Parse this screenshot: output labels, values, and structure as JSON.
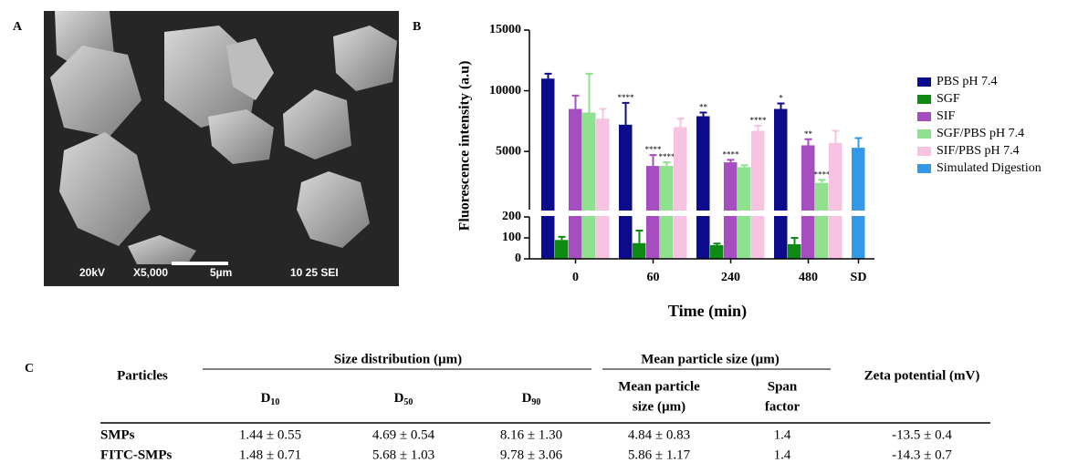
{
  "panels": {
    "a": "A",
    "b": "B",
    "c": "C"
  },
  "sem": {
    "voltage": "20kV",
    "magnification": "X5,000",
    "scale": "5µm",
    "info": "10 25 SEI"
  },
  "chart_data": {
    "type": "bar",
    "y_label": "Fluorescence intensity (a.u)",
    "x_label": "Time (min)",
    "categories": [
      "0",
      "60",
      "240",
      "480",
      "SD"
    ],
    "segments": [
      {
        "ylim": [
          0,
          200
        ],
        "yticks": [
          0,
          100,
          200
        ]
      },
      {
        "ylim": [
          200,
          15000
        ],
        "yticks": [
          5000,
          10000,
          15000
        ]
      }
    ],
    "series": [
      {
        "name": "PBS pH 7.4",
        "color": "#0b0b8c",
        "values": [
          11000,
          7200,
          7900,
          8500,
          null
        ],
        "errors": [
          400,
          1800,
          300,
          450,
          null
        ],
        "annotations": [
          null,
          "****",
          "**",
          "*",
          null
        ]
      },
      {
        "name": "SGF",
        "color": "#0c8a12",
        "values": [
          90,
          75,
          65,
          70,
          null
        ],
        "errors": [
          15,
          60,
          8,
          30,
          null
        ],
        "annotations": [
          null,
          null,
          null,
          null,
          null
        ]
      },
      {
        "name": "SIF",
        "color": "#a64dbf",
        "values": [
          8500,
          3800,
          4100,
          5500,
          null
        ],
        "errors": [
          1100,
          900,
          200,
          500,
          null
        ],
        "annotations": [
          null,
          "****",
          "****",
          "**",
          null
        ]
      },
      {
        "name": "SGF/PBS pH 7.4",
        "color": "#8fe08f",
        "values": [
          8200,
          3800,
          3700,
          2400,
          null
        ],
        "errors": [
          3200,
          300,
          150,
          250,
          null
        ],
        "annotations": [
          null,
          "****",
          null,
          "****",
          null
        ]
      },
      {
        "name": "SIF/PBS pH 7.4",
        "color": "#f8c3e2",
        "values": [
          7700,
          7000,
          6700,
          5700,
          null
        ],
        "errors": [
          800,
          700,
          400,
          1000,
          null
        ],
        "annotations": [
          null,
          null,
          "****",
          null,
          null
        ]
      },
      {
        "name": "Simulated Digestion",
        "color": "#3399e6",
        "values": [
          null,
          null,
          null,
          null,
          5300
        ],
        "errors": [
          null,
          null,
          null,
          null,
          800
        ],
        "annotations": [
          null,
          null,
          null,
          null,
          null
        ]
      }
    ]
  },
  "table": {
    "header": {
      "particles": "Particles",
      "size_distribution": "Size distribution (µm)",
      "mean_group": "Mean particle size (µm)",
      "zeta": "Zeta potential (mV)",
      "d10": {
        "main": "D",
        "sub": "10"
      },
      "d50": {
        "main": "D",
        "sub": "50"
      },
      "d90": {
        "main": "D",
        "sub": "90"
      },
      "mean": [
        "Mean particle",
        "size (µm)"
      ],
      "span": [
        "Span",
        "factor"
      ]
    },
    "rows": [
      [
        "SMPs",
        "1.44 ± 0.55",
        "4.69 ± 0.54",
        "8.16 ± 1.30",
        "4.84 ± 0.83",
        "1.4",
        "-13.5 ± 0.4"
      ],
      [
        "FITC-SMPs",
        "1.48 ± 0.71",
        "5.68 ± 1.03",
        "9.78 ± 3.06",
        "5.86 ± 1.17",
        "1.4",
        "-14.3 ± 0.7"
      ]
    ]
  }
}
